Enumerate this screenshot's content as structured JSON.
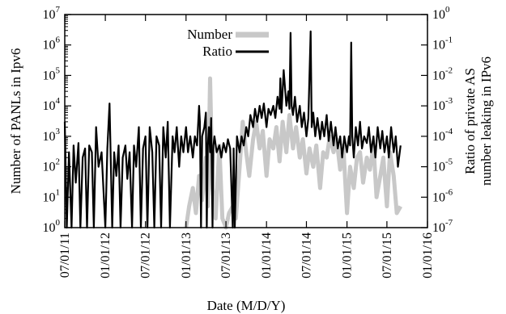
{
  "chart_data": {
    "type": "line",
    "title": "",
    "xlabel": "Date (M/D/Y)",
    "ylabel": "Number of PANLs in Ipv6",
    "y2label_lines": [
      "Ratio of private AS",
      "number leaking in IPv6"
    ],
    "x_categories": [
      "07/01/11",
      "01/01/12",
      "07/01/12",
      "01/01/13",
      "07/01/13",
      "01/01/14",
      "07/01/14",
      "01/01/15",
      "07/01/15",
      "01/01/16"
    ],
    "xlim": [
      "2011-07-01",
      "2016-01-01"
    ],
    "ylim": [
      1,
      10000000
    ],
    "y2lim": [
      1e-07,
      1
    ],
    "yscale": "log",
    "y2scale": "log",
    "yticks": [
      {
        "base": "10",
        "exp": "0"
      },
      {
        "base": "10",
        "exp": "1"
      },
      {
        "base": "10",
        "exp": "2"
      },
      {
        "base": "10",
        "exp": "3"
      },
      {
        "base": "10",
        "exp": "4"
      },
      {
        "base": "10",
        "exp": "5"
      },
      {
        "base": "10",
        "exp": "6"
      },
      {
        "base": "10",
        "exp": "7"
      }
    ],
    "y2ticks": [
      {
        "base": "10",
        "exp": "-7"
      },
      {
        "base": "10",
        "exp": "-6"
      },
      {
        "base": "10",
        "exp": "-5"
      },
      {
        "base": "10",
        "exp": "-4"
      },
      {
        "base": "10",
        "exp": "-3"
      },
      {
        "base": "10",
        "exp": "-2"
      },
      {
        "base": "10",
        "exp": "-1"
      },
      {
        "base": "10",
        "exp": "0"
      }
    ],
    "grid": false,
    "legend_position": "top-center",
    "series": [
      {
        "name": "Number",
        "axis": "left",
        "color": "#c8c8c8",
        "points": [
          [
            "2013-01-01",
            1
          ],
          [
            "2013-01-15",
            5
          ],
          [
            "2013-02-01",
            20
          ],
          [
            "2013-02-15",
            3
          ],
          [
            "2013-03-01",
            50
          ],
          [
            "2013-03-15",
            8
          ],
          [
            "2013-04-01",
            200
          ],
          [
            "2013-04-10",
            5
          ],
          [
            "2013-04-20",
            80000
          ],
          [
            "2013-05-01",
            20
          ],
          [
            "2013-05-15",
            2
          ],
          [
            "2013-06-01",
            500
          ],
          [
            "2013-06-15",
            2
          ],
          [
            "2013-07-01",
            1
          ],
          [
            "2013-07-15",
            3
          ],
          [
            "2013-08-01",
            5
          ],
          [
            "2013-08-15",
            2
          ],
          [
            "2013-09-01",
            100
          ],
          [
            "2013-09-15",
            3000
          ],
          [
            "2013-10-01",
            300
          ],
          [
            "2013-10-15",
            50
          ],
          [
            "2013-11-01",
            800
          ],
          [
            "2013-11-15",
            3000
          ],
          [
            "2013-12-01",
            400
          ],
          [
            "2013-12-15",
            1500
          ],
          [
            "2014-01-01",
            50
          ],
          [
            "2014-01-15",
            800
          ],
          [
            "2014-02-01",
            400
          ],
          [
            "2014-02-15",
            2000
          ],
          [
            "2014-03-01",
            150
          ],
          [
            "2014-03-15",
            3000
          ],
          [
            "2014-04-01",
            300
          ],
          [
            "2014-04-15",
            5000
          ],
          [
            "2014-05-01",
            400
          ],
          [
            "2014-05-15",
            2000
          ],
          [
            "2014-06-01",
            200
          ],
          [
            "2014-06-15",
            800
          ],
          [
            "2014-07-01",
            60
          ],
          [
            "2014-07-15",
            400
          ],
          [
            "2014-08-01",
            100
          ],
          [
            "2014-08-15",
            500
          ],
          [
            "2014-09-01",
            20
          ],
          [
            "2014-09-15",
            300
          ],
          [
            "2014-10-01",
            200
          ],
          [
            "2014-10-15",
            1000
          ],
          [
            "2014-11-01",
            300
          ],
          [
            "2014-11-15",
            800
          ],
          [
            "2014-12-01",
            80
          ],
          [
            "2014-12-15",
            500
          ],
          [
            "2015-01-01",
            3
          ],
          [
            "2015-01-15",
            100
          ],
          [
            "2015-02-01",
            20
          ],
          [
            "2015-02-15",
            200
          ],
          [
            "2015-03-01",
            300
          ],
          [
            "2015-03-15",
            30
          ],
          [
            "2015-04-01",
            200
          ],
          [
            "2015-04-15",
            80
          ],
          [
            "2015-05-01",
            500
          ],
          [
            "2015-05-15",
            10
          ],
          [
            "2015-06-01",
            50
          ],
          [
            "2015-06-15",
            200
          ],
          [
            "2015-07-01",
            5
          ],
          [
            "2015-07-15",
            300
          ],
          [
            "2015-08-01",
            50
          ],
          [
            "2015-08-15",
            3
          ],
          [
            "2015-09-01",
            5
          ]
        ]
      },
      {
        "name": "Ratio",
        "axis": "right",
        "color": "#000000",
        "points": [
          [
            "2011-07-01",
            0.0003
          ],
          [
            "2011-07-10",
            1e-07
          ],
          [
            "2011-07-20",
            3e-05
          ],
          [
            "2011-08-01",
            1e-07
          ],
          [
            "2011-08-10",
            5e-05
          ],
          [
            "2011-08-20",
            3e-06
          ],
          [
            "2011-09-01",
            6e-05
          ],
          [
            "2011-09-10",
            1e-07
          ],
          [
            "2011-09-20",
            2e-05
          ],
          [
            "2011-10-01",
            4e-05
          ],
          [
            "2011-10-10",
            1e-07
          ],
          [
            "2011-10-20",
            5e-05
          ],
          [
            "2011-11-01",
            3e-05
          ],
          [
            "2011-11-10",
            1e-07
          ],
          [
            "2011-11-20",
            0.0002
          ],
          [
            "2011-12-01",
            1e-05
          ],
          [
            "2011-12-15",
            3e-05
          ],
          [
            "2012-01-01",
            1e-07
          ],
          [
            "2012-01-10",
            4e-05
          ],
          [
            "2012-01-20",
            0.0012
          ],
          [
            "2012-02-01",
            1e-07
          ],
          [
            "2012-02-10",
            3e-05
          ],
          [
            "2012-02-20",
            5e-06
          ],
          [
            "2012-03-01",
            5e-05
          ],
          [
            "2012-03-10",
            1e-07
          ],
          [
            "2012-03-20",
            2e-05
          ],
          [
            "2012-04-01",
            5e-05
          ],
          [
            "2012-04-10",
            4e-06
          ],
          [
            "2012-04-20",
            3e-05
          ],
          [
            "2012-05-01",
            1e-07
          ],
          [
            "2012-05-10",
            5e-05
          ],
          [
            "2012-05-20",
            1e-05
          ],
          [
            "2012-06-01",
            0.0002
          ],
          [
            "2012-06-10",
            1e-07
          ],
          [
            "2012-06-20",
            4e-05
          ],
          [
            "2012-07-01",
            0.0001
          ],
          [
            "2012-07-10",
            1e-07
          ],
          [
            "2012-07-20",
            0.0002
          ],
          [
            "2012-08-01",
            3e-05
          ],
          [
            "2012-08-10",
            1e-07
          ],
          [
            "2012-08-20",
            0.0001
          ],
          [
            "2012-09-01",
            5e-05
          ],
          [
            "2012-09-10",
            1e-07
          ],
          [
            "2012-09-20",
            0.0002
          ],
          [
            "2012-10-01",
            2e-05
          ],
          [
            "2012-10-10",
            0.0003
          ],
          [
            "2012-10-20",
            1e-07
          ],
          [
            "2012-11-01",
            0.0001
          ],
          [
            "2012-11-10",
            3e-05
          ],
          [
            "2012-11-20",
            0.0002
          ],
          [
            "2012-12-01",
            1e-05
          ],
          [
            "2012-12-10",
            0.0001
          ],
          [
            "2012-12-20",
            3e-05
          ],
          [
            "2013-01-01",
            0.0002
          ],
          [
            "2013-01-10",
            3e-05
          ],
          [
            "2013-01-20",
            0.0001
          ],
          [
            "2013-02-01",
            2e-05
          ],
          [
            "2013-02-10",
            0.0001
          ],
          [
            "2013-02-20",
            5e-05
          ],
          [
            "2013-03-01",
            0.001
          ],
          [
            "2013-03-05",
            0.0003
          ],
          [
            "2013-03-10",
            1e-07
          ],
          [
            "2013-03-15",
            0.0001
          ],
          [
            "2013-03-25",
            0.0002
          ],
          [
            "2013-04-01",
            0.0006
          ],
          [
            "2013-04-05",
            1e-07
          ],
          [
            "2013-04-10",
            5e-05
          ],
          [
            "2013-04-15",
            0.0002
          ],
          [
            "2013-04-20",
            3e-05
          ],
          [
            "2013-04-25",
            0.0004
          ],
          [
            "2013-05-01",
            1e-07
          ],
          [
            "2013-05-05",
            5e-05
          ],
          [
            "2013-05-10",
            0.0001
          ],
          [
            "2013-05-20",
            3e-05
          ],
          [
            "2013-06-01",
            5e-05
          ],
          [
            "2013-06-10",
            2e-05
          ],
          [
            "2013-06-20",
            6e-05
          ],
          [
            "2013-07-01",
            3e-05
          ],
          [
            "2013-07-10",
            8e-05
          ],
          [
            "2013-07-20",
            4e-05
          ],
          [
            "2013-08-01",
            1e-07
          ],
          [
            "2013-08-05",
            4e-05
          ],
          [
            "2013-08-10",
            1e-07
          ],
          [
            "2013-08-20",
            0.0001
          ],
          [
            "2013-09-01",
            3e-05
          ],
          [
            "2013-09-10",
            0.0001
          ],
          [
            "2013-09-20",
            5e-05
          ],
          [
            "2013-10-01",
            0.0002
          ],
          [
            "2013-10-10",
            0.0001
          ],
          [
            "2013-10-20",
            0.0005
          ],
          [
            "2013-11-01",
            0.0002
          ],
          [
            "2013-11-10",
            0.0008
          ],
          [
            "2013-11-20",
            0.0003
          ],
          [
            "2013-12-01",
            0.001
          ],
          [
            "2013-12-10",
            0.0004
          ],
          [
            "2013-12-20",
            0.0012
          ],
          [
            "2014-01-01",
            0.0002
          ],
          [
            "2014-01-10",
            0.0008
          ],
          [
            "2014-01-20",
            0.0005
          ],
          [
            "2014-02-01",
            0.001
          ],
          [
            "2014-02-10",
            0.0004
          ],
          [
            "2014-02-20",
            0.002
          ],
          [
            "2014-03-01",
            0.0008
          ],
          [
            "2014-03-05",
            0.008
          ],
          [
            "2014-03-10",
            0.0006
          ],
          [
            "2014-03-20",
            0.015
          ],
          [
            "2014-04-01",
            0.001
          ],
          [
            "2014-04-10",
            0.003
          ],
          [
            "2014-04-15",
            0.0008
          ],
          [
            "2014-04-20",
            0.25
          ],
          [
            "2014-04-25",
            0.001
          ],
          [
            "2014-05-01",
            0.0005
          ],
          [
            "2014-05-10",
            0.002
          ],
          [
            "2014-05-20",
            0.0003
          ],
          [
            "2014-06-01",
            0.001
          ],
          [
            "2014-06-10",
            0.0002
          ],
          [
            "2014-06-20",
            0.0006
          ],
          [
            "2014-07-01",
            0.0001
          ],
          [
            "2014-07-10",
            0.0004
          ],
          [
            "2014-07-20",
            0.28
          ],
          [
            "2014-07-25",
            0.0002
          ],
          [
            "2014-08-01",
            0.0006
          ],
          [
            "2014-08-10",
            0.0001
          ],
          [
            "2014-08-20",
            0.0004
          ],
          [
            "2014-09-01",
            8e-05
          ],
          [
            "2014-09-10",
            0.0003
          ],
          [
            "2014-09-20",
            0.0001
          ],
          [
            "2014-10-01",
            0.0005
          ],
          [
            "2014-10-10",
            7e-05
          ],
          [
            "2014-10-20",
            0.0003
          ],
          [
            "2014-11-01",
            5e-05
          ],
          [
            "2014-11-10",
            0.0002
          ],
          [
            "2014-11-20",
            4e-05
          ],
          [
            "2014-12-01",
            0.0001
          ],
          [
            "2014-12-10",
            2e-05
          ],
          [
            "2014-12-20",
            0.0001
          ],
          [
            "2015-01-01",
            3e-05
          ],
          [
            "2015-01-10",
            0.0001
          ],
          [
            "2015-01-15",
            5e-05
          ],
          [
            "2015-01-20",
            0.12
          ],
          [
            "2015-01-25",
            0.0001
          ],
          [
            "2015-02-01",
            2e-05
          ],
          [
            "2015-02-10",
            0.0002
          ],
          [
            "2015-02-20",
            5e-05
          ],
          [
            "2015-03-01",
            0.0003
          ],
          [
            "2015-03-10",
            4e-05
          ],
          [
            "2015-03-20",
            0.0001
          ],
          [
            "2015-04-01",
            6e-05
          ],
          [
            "2015-04-10",
            0.0002
          ],
          [
            "2015-04-20",
            3e-05
          ],
          [
            "2015-05-01",
            0.0001
          ],
          [
            "2015-05-10",
            2e-05
          ],
          [
            "2015-05-20",
            0.0002
          ],
          [
            "2015-06-01",
            4e-05
          ],
          [
            "2015-06-10",
            0.00015
          ],
          [
            "2015-06-20",
            3e-05
          ],
          [
            "2015-07-01",
            0.0001
          ],
          [
            "2015-07-10",
            2e-05
          ],
          [
            "2015-07-20",
            0.0002
          ],
          [
            "2015-08-01",
            3e-05
          ],
          [
            "2015-08-10",
            0.0001
          ],
          [
            "2015-08-20",
            1e-05
          ],
          [
            "2015-09-01",
            5e-05
          ]
        ]
      }
    ]
  }
}
